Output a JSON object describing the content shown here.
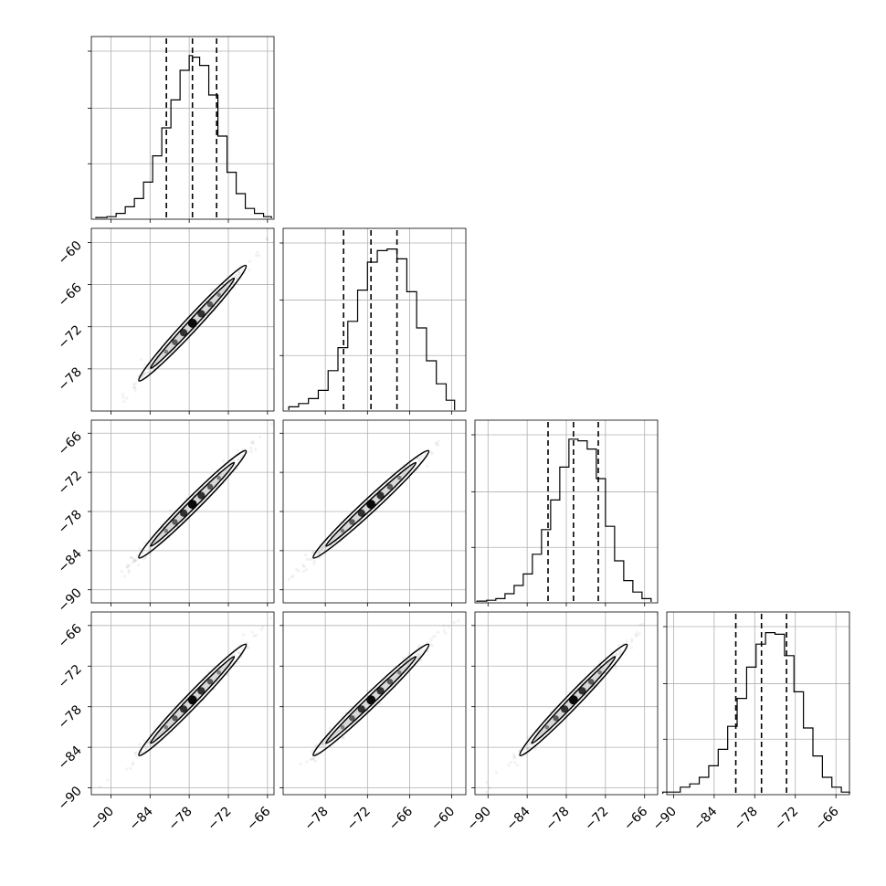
{
  "chart_data": {
    "type": "corner",
    "parameters": [
      "",
      "",
      "",
      ""
    ],
    "grid": true,
    "axis_ranges": [
      [
        -93,
        -65
      ],
      [
        -84,
        -58
      ],
      [
        -92,
        -64
      ],
      [
        -91,
        -64
      ]
    ],
    "ticks": [
      [
        "−90",
        "−84",
        "−78",
        "−72",
        "−66"
      ],
      [
        "−78",
        "−72",
        "−66",
        "−60"
      ],
      [
        "−90",
        "−84",
        "−78",
        "−72",
        "−66"
      ],
      [
        "−90",
        "−84",
        "−78",
        "−72",
        "−66"
      ]
    ],
    "tick_values": [
      [
        -90,
        -84,
        -78,
        -72,
        -66
      ],
      [
        -78,
        -72,
        -66,
        -60
      ],
      [
        -90,
        -84,
        -78,
        -72,
        -66
      ],
      [
        -90,
        -84,
        -78,
        -72,
        -66
      ]
    ],
    "row_ticks": [
      [],
      [
        "−60",
        "−66",
        "−72",
        "−78"
      ],
      [
        "−66",
        "−72",
        "−78",
        "−84",
        "−90"
      ],
      [
        "−66",
        "−72",
        "−78",
        "−84",
        "−90"
      ]
    ],
    "row_tick_values": [
      [],
      [
        -60,
        -66,
        -72,
        -78
      ],
      [
        -66,
        -72,
        -78,
        -84,
        -90
      ],
      [
        -66,
        -72,
        -78,
        -84,
        -90
      ]
    ],
    "quantiles": [
      [
        -81.5,
        -77.5,
        -73.8
      ],
      [
        -75.4,
        -71.5,
        -67.8
      ],
      [
        -80.8,
        -76.9,
        -73.1
      ],
      [
        -80.8,
        -77.0,
        -73.3
      ]
    ],
    "histogram_bin_edges": [
      [
        -92.3,
        -90.6,
        -89.2,
        -87.8,
        -86.4,
        -85.0,
        -83.6,
        -82.2,
        -80.8,
        -79.4,
        -78.0,
        -77.5,
        -76.4,
        -75.0,
        -73.6,
        -72.2,
        -70.8,
        -69.4,
        -68.0,
        -66.6,
        -65.4
      ],
      [
        -83.2,
        -81.8,
        -80.4,
        -79.0,
        -77.6,
        -76.2,
        -74.8,
        -73.4,
        -72.0,
        -70.6,
        -69.2,
        -67.8,
        -66.4,
        -65.0,
        -63.6,
        -62.2,
        -60.8,
        -59.6
      ],
      [
        -91.7,
        -90.2,
        -88.8,
        -87.4,
        -86.0,
        -84.6,
        -83.2,
        -81.8,
        -80.4,
        -79.0,
        -77.6,
        -76.2,
        -74.8,
        -73.4,
        -72.0,
        -70.6,
        -69.2,
        -67.8,
        -66.4,
        -65.0
      ],
      [
        -91.6,
        -89.0,
        -87.6,
        -86.2,
        -84.8,
        -83.4,
        -82.0,
        -80.6,
        -79.2,
        -77.8,
        -76.4,
        -75.0,
        -73.6,
        -72.2,
        -70.8,
        -69.4,
        -68.0,
        -66.6,
        -65.2,
        -64.0
      ]
    ],
    "histogram_heights": [
      [
        0.005,
        0.01,
        0.03,
        0.07,
        0.12,
        0.22,
        0.38,
        0.55,
        0.72,
        0.9,
        0.99,
        0.98,
        0.93,
        0.75,
        0.5,
        0.28,
        0.15,
        0.06,
        0.03,
        0.01
      ],
      [
        0.02,
        0.04,
        0.07,
        0.12,
        0.24,
        0.38,
        0.54,
        0.73,
        0.9,
        0.97,
        0.98,
        0.92,
        0.72,
        0.5,
        0.3,
        0.16,
        0.06
      ],
      [
        0.005,
        0.01,
        0.02,
        0.05,
        0.1,
        0.17,
        0.29,
        0.44,
        0.62,
        0.82,
        0.99,
        0.98,
        0.93,
        0.75,
        0.46,
        0.25,
        0.13,
        0.06,
        0.02
      ],
      [
        0.01,
        0.04,
        0.06,
        0.1,
        0.17,
        0.27,
        0.41,
        0.58,
        0.77,
        0.91,
        0.98,
        0.97,
        0.84,
        0.62,
        0.4,
        0.23,
        0.1,
        0.04,
        0.01
      ]
    ],
    "correlated_pairs": [
      {
        "row": 1,
        "col": 0,
        "center": [
          -77.5,
          -71.5
        ]
      },
      {
        "row": 2,
        "col": 0,
        "center": [
          -77.5,
          -76.9
        ]
      },
      {
        "row": 2,
        "col": 1,
        "center": [
          -71.5,
          -76.9
        ]
      },
      {
        "row": 3,
        "col": 0,
        "center": [
          -77.5,
          -77.0
        ]
      },
      {
        "row": 3,
        "col": 1,
        "center": [
          -71.5,
          -77.0
        ]
      },
      {
        "row": 3,
        "col": 2,
        "center": [
          -76.9,
          -77.0
        ]
      }
    ]
  }
}
